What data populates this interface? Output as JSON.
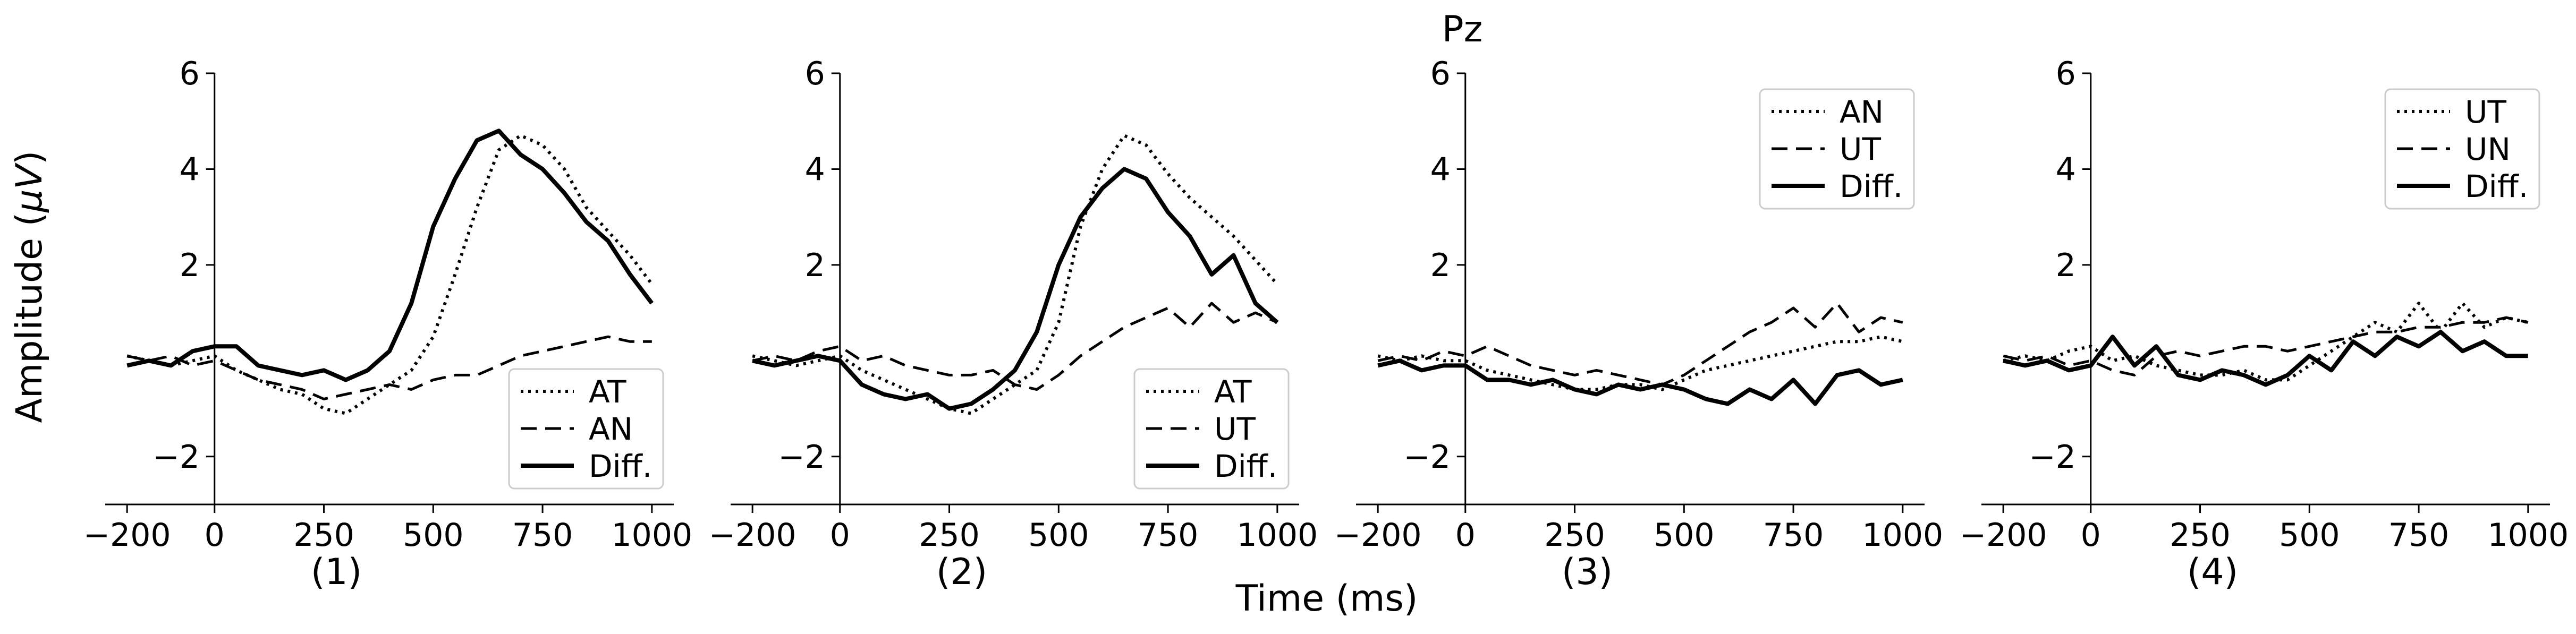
{
  "figure": {
    "title": "Pz",
    "xlabel": "Time (ms)",
    "ylabel_prefix": "Amplitude (",
    "ylabel_symbol": "μV",
    "ylabel_suffix": ")"
  },
  "chart_data": [
    {
      "type": "line",
      "panel_label": "(1)",
      "xlim": [
        -250,
        1050
      ],
      "ylim": [
        -3,
        6
      ],
      "xticks": [
        -200,
        0,
        250,
        500,
        750,
        1000
      ],
      "xtick_labels": [
        "−200",
        "0",
        "250",
        "500",
        "750",
        "1000"
      ],
      "yticks": [
        -2,
        2,
        4,
        6
      ],
      "ytick_labels": [
        "−2",
        "2",
        "4",
        "6"
      ],
      "legend_position": "lower-right",
      "series": [
        {
          "name": "AT",
          "style": "dotted",
          "x": [
            -200,
            -150,
            -100,
            -50,
            0,
            50,
            100,
            150,
            200,
            250,
            300,
            350,
            400,
            450,
            500,
            550,
            600,
            650,
            700,
            750,
            800,
            850,
            900,
            950,
            1000
          ],
          "y": [
            0.1,
            0.0,
            -0.1,
            0.0,
            0.1,
            -0.2,
            -0.4,
            -0.6,
            -0.7,
            -1.0,
            -1.1,
            -0.8,
            -0.5,
            -0.2,
            0.5,
            1.8,
            3.2,
            4.4,
            4.7,
            4.5,
            4.0,
            3.2,
            2.7,
            2.2,
            1.6
          ]
        },
        {
          "name": "AN",
          "style": "dashed",
          "x": [
            -200,
            -150,
            -100,
            -50,
            0,
            50,
            100,
            150,
            200,
            250,
            300,
            350,
            400,
            450,
            500,
            550,
            600,
            650,
            700,
            750,
            800,
            850,
            900,
            950,
            1000
          ],
          "y": [
            0.1,
            0.0,
            0.1,
            -0.1,
            0.0,
            -0.2,
            -0.4,
            -0.5,
            -0.6,
            -0.8,
            -0.7,
            -0.6,
            -0.5,
            -0.6,
            -0.4,
            -0.3,
            -0.3,
            -0.1,
            0.1,
            0.2,
            0.3,
            0.4,
            0.5,
            0.4,
            0.4
          ]
        },
        {
          "name": "Diff.",
          "style": "solid",
          "x": [
            -200,
            -150,
            -100,
            -50,
            0,
            50,
            100,
            150,
            200,
            250,
            300,
            350,
            400,
            450,
            500,
            550,
            600,
            650,
            700,
            750,
            800,
            850,
            900,
            950,
            1000
          ],
          "y": [
            -0.1,
            0.0,
            -0.1,
            0.2,
            0.3,
            0.3,
            -0.1,
            -0.2,
            -0.3,
            -0.2,
            -0.4,
            -0.2,
            0.2,
            1.2,
            2.8,
            3.8,
            4.6,
            4.8,
            4.3,
            4.0,
            3.5,
            2.9,
            2.5,
            1.8,
            1.2
          ]
        }
      ]
    },
    {
      "type": "line",
      "panel_label": "(2)",
      "xlim": [
        -250,
        1050
      ],
      "ylim": [
        -3,
        6
      ],
      "xticks": [
        -200,
        0,
        250,
        500,
        750,
        1000
      ],
      "xtick_labels": [
        "−200",
        "0",
        "250",
        "500",
        "750",
        "1000"
      ],
      "yticks": [
        -2,
        2,
        4,
        6
      ],
      "ytick_labels": [
        "−2",
        "2",
        "4",
        "6"
      ],
      "legend_position": "lower-right",
      "series": [
        {
          "name": "AT",
          "style": "dotted",
          "x": [
            -200,
            -150,
            -100,
            -50,
            0,
            50,
            100,
            150,
            200,
            250,
            300,
            350,
            400,
            450,
            500,
            550,
            600,
            650,
            700,
            750,
            800,
            850,
            900,
            950,
            1000
          ],
          "y": [
            0.1,
            0.0,
            -0.1,
            0.0,
            0.1,
            -0.2,
            -0.4,
            -0.6,
            -0.8,
            -1.0,
            -1.1,
            -0.8,
            -0.5,
            -0.2,
            0.8,
            2.8,
            4.0,
            4.7,
            4.5,
            3.9,
            3.4,
            3.0,
            2.6,
            2.1,
            1.6
          ]
        },
        {
          "name": "UT",
          "style": "dashed",
          "x": [
            -200,
            -150,
            -100,
            -50,
            0,
            50,
            100,
            150,
            200,
            250,
            300,
            350,
            400,
            450,
            500,
            550,
            600,
            650,
            700,
            750,
            800,
            850,
            900,
            950,
            1000
          ],
          "y": [
            0.0,
            0.1,
            0.0,
            0.2,
            0.3,
            0.0,
            0.1,
            -0.1,
            -0.2,
            -0.3,
            -0.3,
            -0.2,
            -0.5,
            -0.6,
            -0.3,
            0.1,
            0.4,
            0.7,
            0.9,
            1.1,
            0.7,
            1.2,
            0.8,
            1.0,
            0.8
          ]
        },
        {
          "name": "Diff.",
          "style": "solid",
          "x": [
            -200,
            -150,
            -100,
            -50,
            0,
            50,
            100,
            150,
            200,
            250,
            300,
            350,
            400,
            450,
            500,
            550,
            600,
            650,
            700,
            750,
            800,
            850,
            900,
            950,
            1000
          ],
          "y": [
            0.0,
            -0.1,
            0.0,
            0.1,
            0.0,
            -0.5,
            -0.7,
            -0.8,
            -0.7,
            -1.0,
            -0.9,
            -0.6,
            -0.2,
            0.6,
            2.0,
            3.0,
            3.6,
            4.0,
            3.8,
            3.1,
            2.6,
            1.8,
            2.2,
            1.2,
            0.8
          ]
        }
      ]
    },
    {
      "type": "line",
      "panel_label": "(3)",
      "xlim": [
        -250,
        1050
      ],
      "ylim": [
        -3,
        6
      ],
      "xticks": [
        -200,
        0,
        250,
        500,
        750,
        1000
      ],
      "xtick_labels": [
        "−200",
        "0",
        "250",
        "500",
        "750",
        "1000"
      ],
      "yticks": [
        -2,
        2,
        4,
        6
      ],
      "ytick_labels": [
        "−2",
        "2",
        "4",
        "6"
      ],
      "legend_position": "upper-right",
      "series": [
        {
          "name": "AN",
          "style": "dotted",
          "x": [
            -200,
            -150,
            -100,
            -50,
            0,
            50,
            100,
            150,
            200,
            250,
            300,
            350,
            400,
            450,
            500,
            550,
            600,
            650,
            700,
            750,
            800,
            850,
            900,
            950,
            1000
          ],
          "y": [
            0.1,
            0.0,
            0.1,
            0.0,
            0.0,
            -0.2,
            -0.3,
            -0.4,
            -0.5,
            -0.6,
            -0.6,
            -0.5,
            -0.5,
            -0.6,
            -0.4,
            -0.2,
            -0.1,
            0.0,
            0.1,
            0.2,
            0.3,
            0.4,
            0.4,
            0.5,
            0.4
          ]
        },
        {
          "name": "UT",
          "style": "dashed",
          "x": [
            -200,
            -150,
            -100,
            -50,
            0,
            50,
            100,
            150,
            200,
            250,
            300,
            350,
            400,
            450,
            500,
            550,
            600,
            650,
            700,
            750,
            800,
            850,
            900,
            950,
            1000
          ],
          "y": [
            0.0,
            0.1,
            0.0,
            0.2,
            0.1,
            0.3,
            0.1,
            -0.1,
            -0.2,
            -0.3,
            -0.2,
            -0.3,
            -0.4,
            -0.5,
            -0.3,
            0.0,
            0.3,
            0.6,
            0.8,
            1.1,
            0.7,
            1.2,
            0.6,
            0.9,
            0.8
          ]
        },
        {
          "name": "Diff.",
          "style": "solid",
          "x": [
            -200,
            -150,
            -100,
            -50,
            0,
            50,
            100,
            150,
            200,
            250,
            300,
            350,
            400,
            450,
            500,
            550,
            600,
            650,
            700,
            750,
            800,
            850,
            900,
            950,
            1000
          ],
          "y": [
            -0.1,
            0.0,
            -0.2,
            -0.1,
            -0.1,
            -0.4,
            -0.4,
            -0.5,
            -0.4,
            -0.6,
            -0.7,
            -0.5,
            -0.6,
            -0.5,
            -0.6,
            -0.8,
            -0.9,
            -0.6,
            -0.8,
            -0.4,
            -0.9,
            -0.3,
            -0.2,
            -0.5,
            -0.4
          ]
        }
      ]
    },
    {
      "type": "line",
      "panel_label": "(4)",
      "xlim": [
        -250,
        1050
      ],
      "ylim": [
        -3,
        6
      ],
      "xticks": [
        -200,
        0,
        250,
        500,
        750,
        1000
      ],
      "xtick_labels": [
        "−200",
        "0",
        "250",
        "500",
        "750",
        "1000"
      ],
      "yticks": [
        -2,
        2,
        4,
        6
      ],
      "ytick_labels": [
        "−2",
        "2",
        "4",
        "6"
      ],
      "legend_position": "upper-right",
      "series": [
        {
          "name": "UT",
          "style": "dotted",
          "x": [
            -200,
            -150,
            -100,
            -50,
            0,
            50,
            100,
            150,
            200,
            250,
            300,
            350,
            400,
            450,
            500,
            550,
            600,
            650,
            700,
            750,
            800,
            850,
            900,
            950,
            1000
          ],
          "y": [
            0.0,
            0.1,
            0.0,
            0.2,
            0.3,
            0.0,
            0.1,
            -0.1,
            -0.2,
            -0.3,
            -0.3,
            -0.2,
            -0.4,
            -0.4,
            -0.1,
            0.2,
            0.5,
            0.8,
            0.6,
            1.2,
            0.6,
            1.2,
            0.7,
            0.9,
            0.8
          ]
        },
        {
          "name": "UN",
          "style": "dashed",
          "x": [
            -200,
            -150,
            -100,
            -50,
            0,
            50,
            100,
            150,
            200,
            250,
            300,
            350,
            400,
            450,
            500,
            550,
            600,
            650,
            700,
            750,
            800,
            850,
            900,
            950,
            1000
          ],
          "y": [
            0.1,
            0.0,
            0.1,
            -0.1,
            0.0,
            -0.2,
            -0.3,
            0.1,
            0.2,
            0.1,
            0.2,
            0.3,
            0.3,
            0.2,
            0.3,
            0.4,
            0.5,
            0.6,
            0.6,
            0.7,
            0.7,
            0.8,
            0.8,
            0.9,
            0.8
          ]
        },
        {
          "name": "Diff.",
          "style": "solid",
          "x": [
            -200,
            -150,
            -100,
            -50,
            0,
            50,
            100,
            150,
            200,
            250,
            300,
            350,
            400,
            450,
            500,
            550,
            600,
            650,
            700,
            750,
            800,
            850,
            900,
            950,
            1000
          ],
          "y": [
            0.0,
            -0.1,
            0.0,
            -0.2,
            -0.1,
            0.5,
            -0.1,
            0.3,
            -0.3,
            -0.4,
            -0.2,
            -0.3,
            -0.5,
            -0.3,
            0.1,
            -0.2,
            0.4,
            0.1,
            0.5,
            0.3,
            0.6,
            0.2,
            0.4,
            0.1,
            0.1
          ]
        }
      ]
    }
  ]
}
